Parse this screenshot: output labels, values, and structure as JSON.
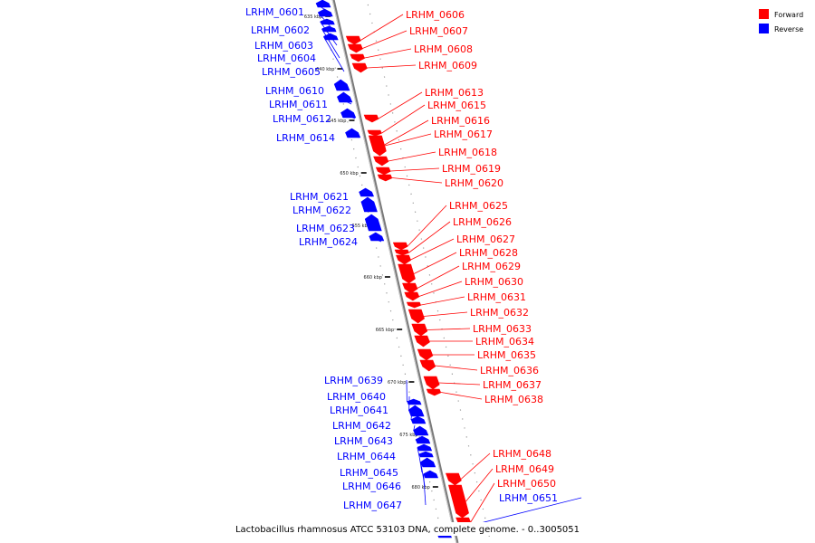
{
  "caption": "Lactobacillus rhamnosus ATCC 53103 DNA, complete genome. - 0..3005051",
  "legend": [
    {
      "label": "Forward",
      "color": "#ff0000"
    },
    {
      "label": "Reverse",
      "color": "#0000ff"
    }
  ],
  "colors": {
    "forward": "#ff0000",
    "reverse": "#0000ff",
    "backbone": "#888888"
  },
  "ticks": [
    "635 kbp",
    "640 kbp",
    "645 kbp",
    "650 kbp",
    "655 kbp",
    "660 kbp",
    "665 kbp",
    "670 kbp",
    "675 kbp",
    "680 kbp"
  ],
  "genes": [
    {
      "name": "LRHM_0601",
      "strand": "reverse"
    },
    {
      "name": "LRHM_0602",
      "strand": "reverse"
    },
    {
      "name": "LRHM_0603",
      "strand": "reverse"
    },
    {
      "name": "LRHM_0604",
      "strand": "reverse"
    },
    {
      "name": "LRHM_0605",
      "strand": "reverse"
    },
    {
      "name": "LRHM_0606",
      "strand": "forward"
    },
    {
      "name": "LRHM_0607",
      "strand": "forward"
    },
    {
      "name": "LRHM_0608",
      "strand": "forward"
    },
    {
      "name": "LRHM_0609",
      "strand": "forward"
    },
    {
      "name": "LRHM_0610",
      "strand": "reverse"
    },
    {
      "name": "LRHM_0611",
      "strand": "reverse"
    },
    {
      "name": "LRHM_0612",
      "strand": "reverse"
    },
    {
      "name": "LRHM_0613",
      "strand": "forward"
    },
    {
      "name": "LRHM_0614",
      "strand": "reverse"
    },
    {
      "name": "LRHM_0615",
      "strand": "forward"
    },
    {
      "name": "LRHM_0616",
      "strand": "forward"
    },
    {
      "name": "LRHM_0617",
      "strand": "forward"
    },
    {
      "name": "LRHM_0618",
      "strand": "forward"
    },
    {
      "name": "LRHM_0619",
      "strand": "forward"
    },
    {
      "name": "LRHM_0620",
      "strand": "forward"
    },
    {
      "name": "LRHM_0621",
      "strand": "reverse"
    },
    {
      "name": "LRHM_0622",
      "strand": "reverse"
    },
    {
      "name": "LRHM_0623",
      "strand": "reverse"
    },
    {
      "name": "LRHM_0624",
      "strand": "reverse"
    },
    {
      "name": "LRHM_0625",
      "strand": "forward"
    },
    {
      "name": "LRHM_0626",
      "strand": "forward"
    },
    {
      "name": "LRHM_0627",
      "strand": "forward"
    },
    {
      "name": "LRHM_0628",
      "strand": "forward"
    },
    {
      "name": "LRHM_0629",
      "strand": "forward"
    },
    {
      "name": "LRHM_0630",
      "strand": "forward"
    },
    {
      "name": "LRHM_0631",
      "strand": "forward"
    },
    {
      "name": "LRHM_0632",
      "strand": "forward"
    },
    {
      "name": "LRHM_0633",
      "strand": "forward"
    },
    {
      "name": "LRHM_0634",
      "strand": "forward"
    },
    {
      "name": "LRHM_0635",
      "strand": "forward"
    },
    {
      "name": "LRHM_0636",
      "strand": "forward"
    },
    {
      "name": "LRHM_0637",
      "strand": "forward"
    },
    {
      "name": "LRHM_0638",
      "strand": "forward"
    },
    {
      "name": "LRHM_0639",
      "strand": "reverse"
    },
    {
      "name": "LRHM_0640",
      "strand": "reverse"
    },
    {
      "name": "LRHM_0641",
      "strand": "reverse"
    },
    {
      "name": "LRHM_0642",
      "strand": "reverse"
    },
    {
      "name": "LRHM_0643",
      "strand": "reverse"
    },
    {
      "name": "LRHM_0644",
      "strand": "reverse"
    },
    {
      "name": "LRHM_0645",
      "strand": "reverse"
    },
    {
      "name": "LRHM_0646",
      "strand": "reverse"
    },
    {
      "name": "LRHM_0647",
      "strand": "reverse"
    },
    {
      "name": "LRHM_0648",
      "strand": "forward"
    },
    {
      "name": "LRHM_0649",
      "strand": "forward"
    },
    {
      "name": "LRHM_0650",
      "strand": "forward"
    },
    {
      "name": "LRHM_0651",
      "strand": "reverse"
    }
  ]
}
